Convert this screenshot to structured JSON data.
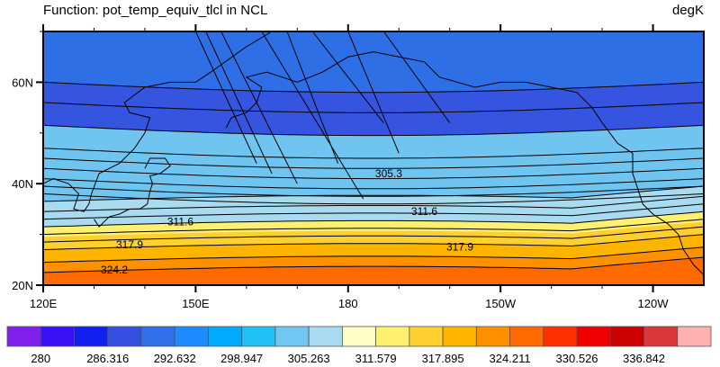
{
  "header": {
    "left_title": "Function: pot_temp_equiv_tlcl in NCL",
    "right_title": "degK"
  },
  "chart_data": {
    "type": "contour-map",
    "lon_range": [
      120,
      250
    ],
    "lat_range": [
      20,
      70
    ],
    "x_ticks": [
      {
        "lon": 120,
        "label": "120E"
      },
      {
        "lon": 150,
        "label": "150E"
      },
      {
        "lon": 180,
        "label": "180"
      },
      {
        "lon": 210,
        "label": "150W"
      },
      {
        "lon": 240,
        "label": "120W"
      }
    ],
    "y_ticks": [
      {
        "lat": 20,
        "label": "20N"
      },
      {
        "lat": 40,
        "label": "40N"
      },
      {
        "lat": 60,
        "label": "60N"
      }
    ],
    "bands": [
      {
        "lat_lo": 60,
        "lat_hi": 70,
        "color": "#2F6FE6"
      },
      {
        "lat_lo": 51.5,
        "lat_hi": 60,
        "color": "#3555E0"
      },
      {
        "lat_lo": 36.5,
        "lat_hi": 51.5,
        "color": "#70C4F0"
      },
      {
        "lat_lo": 31.5,
        "lat_hi": 36.5,
        "color": "#A8DAF0"
      },
      {
        "lat_lo": 29.5,
        "lat_hi": 31.5,
        "color": "#FFF070"
      },
      {
        "lat_lo": 27,
        "lat_hi": 29.5,
        "color": "#FFD030"
      },
      {
        "lat_lo": 24.5,
        "lat_hi": 27,
        "color": "#FFB400"
      },
      {
        "lat_lo": 22.5,
        "lat_hi": 24.5,
        "color": "#FF9000"
      },
      {
        "lat_lo": 20,
        "lat_hi": 22.5,
        "color": "#FF6A00"
      }
    ],
    "contour_lats": [
      22.5,
      24.5,
      27,
      28.5,
      30,
      31.5,
      33,
      34.5,
      36.5,
      38,
      39.5,
      41,
      43,
      45,
      47,
      51.5,
      56,
      60
    ],
    "contour_labels": [
      {
        "text": "305.3",
        "lon": 188,
        "lat": 42
      },
      {
        "text": "311.6",
        "lon": 147,
        "lat": 32.5
      },
      {
        "text": "311.6",
        "lon": 195,
        "lat": 34.5
      },
      {
        "text": "317.9",
        "lon": 137,
        "lat": 28
      },
      {
        "text": "317.9",
        "lon": 202,
        "lat": 27.5
      },
      {
        "text": "324.2",
        "lon": 134,
        "lat": 23
      }
    ],
    "colorbar": {
      "colors": [
        "#7F20EE",
        "#3A10F5",
        "#1020F0",
        "#3550E0",
        "#3070E8",
        "#1E8CFF",
        "#00AAFF",
        "#20C0F8",
        "#70C8F0",
        "#A8DAF0",
        "#FFFFC8",
        "#FFF070",
        "#FFD030",
        "#FFB400",
        "#FF9000",
        "#FF6A00",
        "#FF3000",
        "#F00000",
        "#CC0000",
        "#D83838",
        "#FFB0B0"
      ],
      "labels": [
        "280",
        "286.316",
        "292.632",
        "298.947",
        "305.263",
        "311.579",
        "317.895",
        "324.211",
        "330.526",
        "336.842"
      ]
    }
  }
}
